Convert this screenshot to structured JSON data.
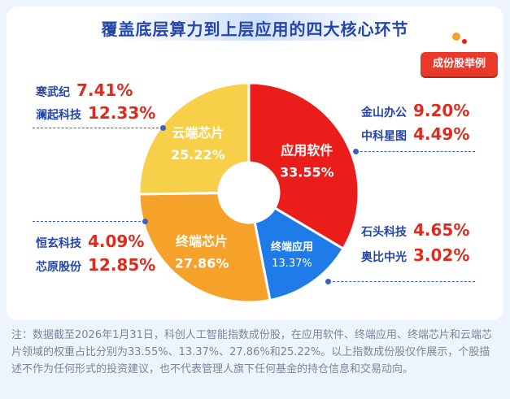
{
  "title": "覆盖底层算力到上层应用的四大核心环节",
  "badge": "成份股举例",
  "chart_data": {
    "type": "pie",
    "categories": [
      "应用软件",
      "终端应用",
      "终端芯片",
      "云端芯片"
    ],
    "values": [
      33.55,
      13.37,
      27.86,
      25.22
    ],
    "value_labels": [
      "33.55%",
      "13.37%",
      "27.86%",
      "25.22%"
    ],
    "donut": true
  },
  "colors": {
    "应用软件": "#ea1d1b",
    "终端应用": "#1f7be8",
    "终端芯片": "#f6a22a",
    "云端芯片": "#f8cf48"
  },
  "stocks": {
    "cloud": [
      {
        "name": "寒武纪",
        "pct": "7.41%"
      },
      {
        "name": "澜起科技",
        "pct": "12.33%"
      }
    ],
    "software": [
      {
        "name": "金山办公",
        "pct": "9.20%"
      },
      {
        "name": "中科星图",
        "pct": "4.49%"
      }
    ],
    "terminal_chip": [
      {
        "name": "恒玄科技",
        "pct": "4.09%"
      },
      {
        "name": "芯原股份",
        "pct": "12.85%"
      }
    ],
    "terminal_app": [
      {
        "name": "石头科技",
        "pct": "4.65%"
      },
      {
        "name": "奥比中光",
        "pct": "3.02%"
      }
    ]
  },
  "note": "注：数据截至2026年1月31日，科创人工智能指数成份股，在应用软件、终端应用、终端芯片和云端芯片领域的权重占比分别为33.55%、13.37%、27.86%和25.22%。以上指数成份股仅作展示，个股描述不作为任何形式的投资建议，也不代表管理人旗下任何基金的持仓信息和交易动向。"
}
